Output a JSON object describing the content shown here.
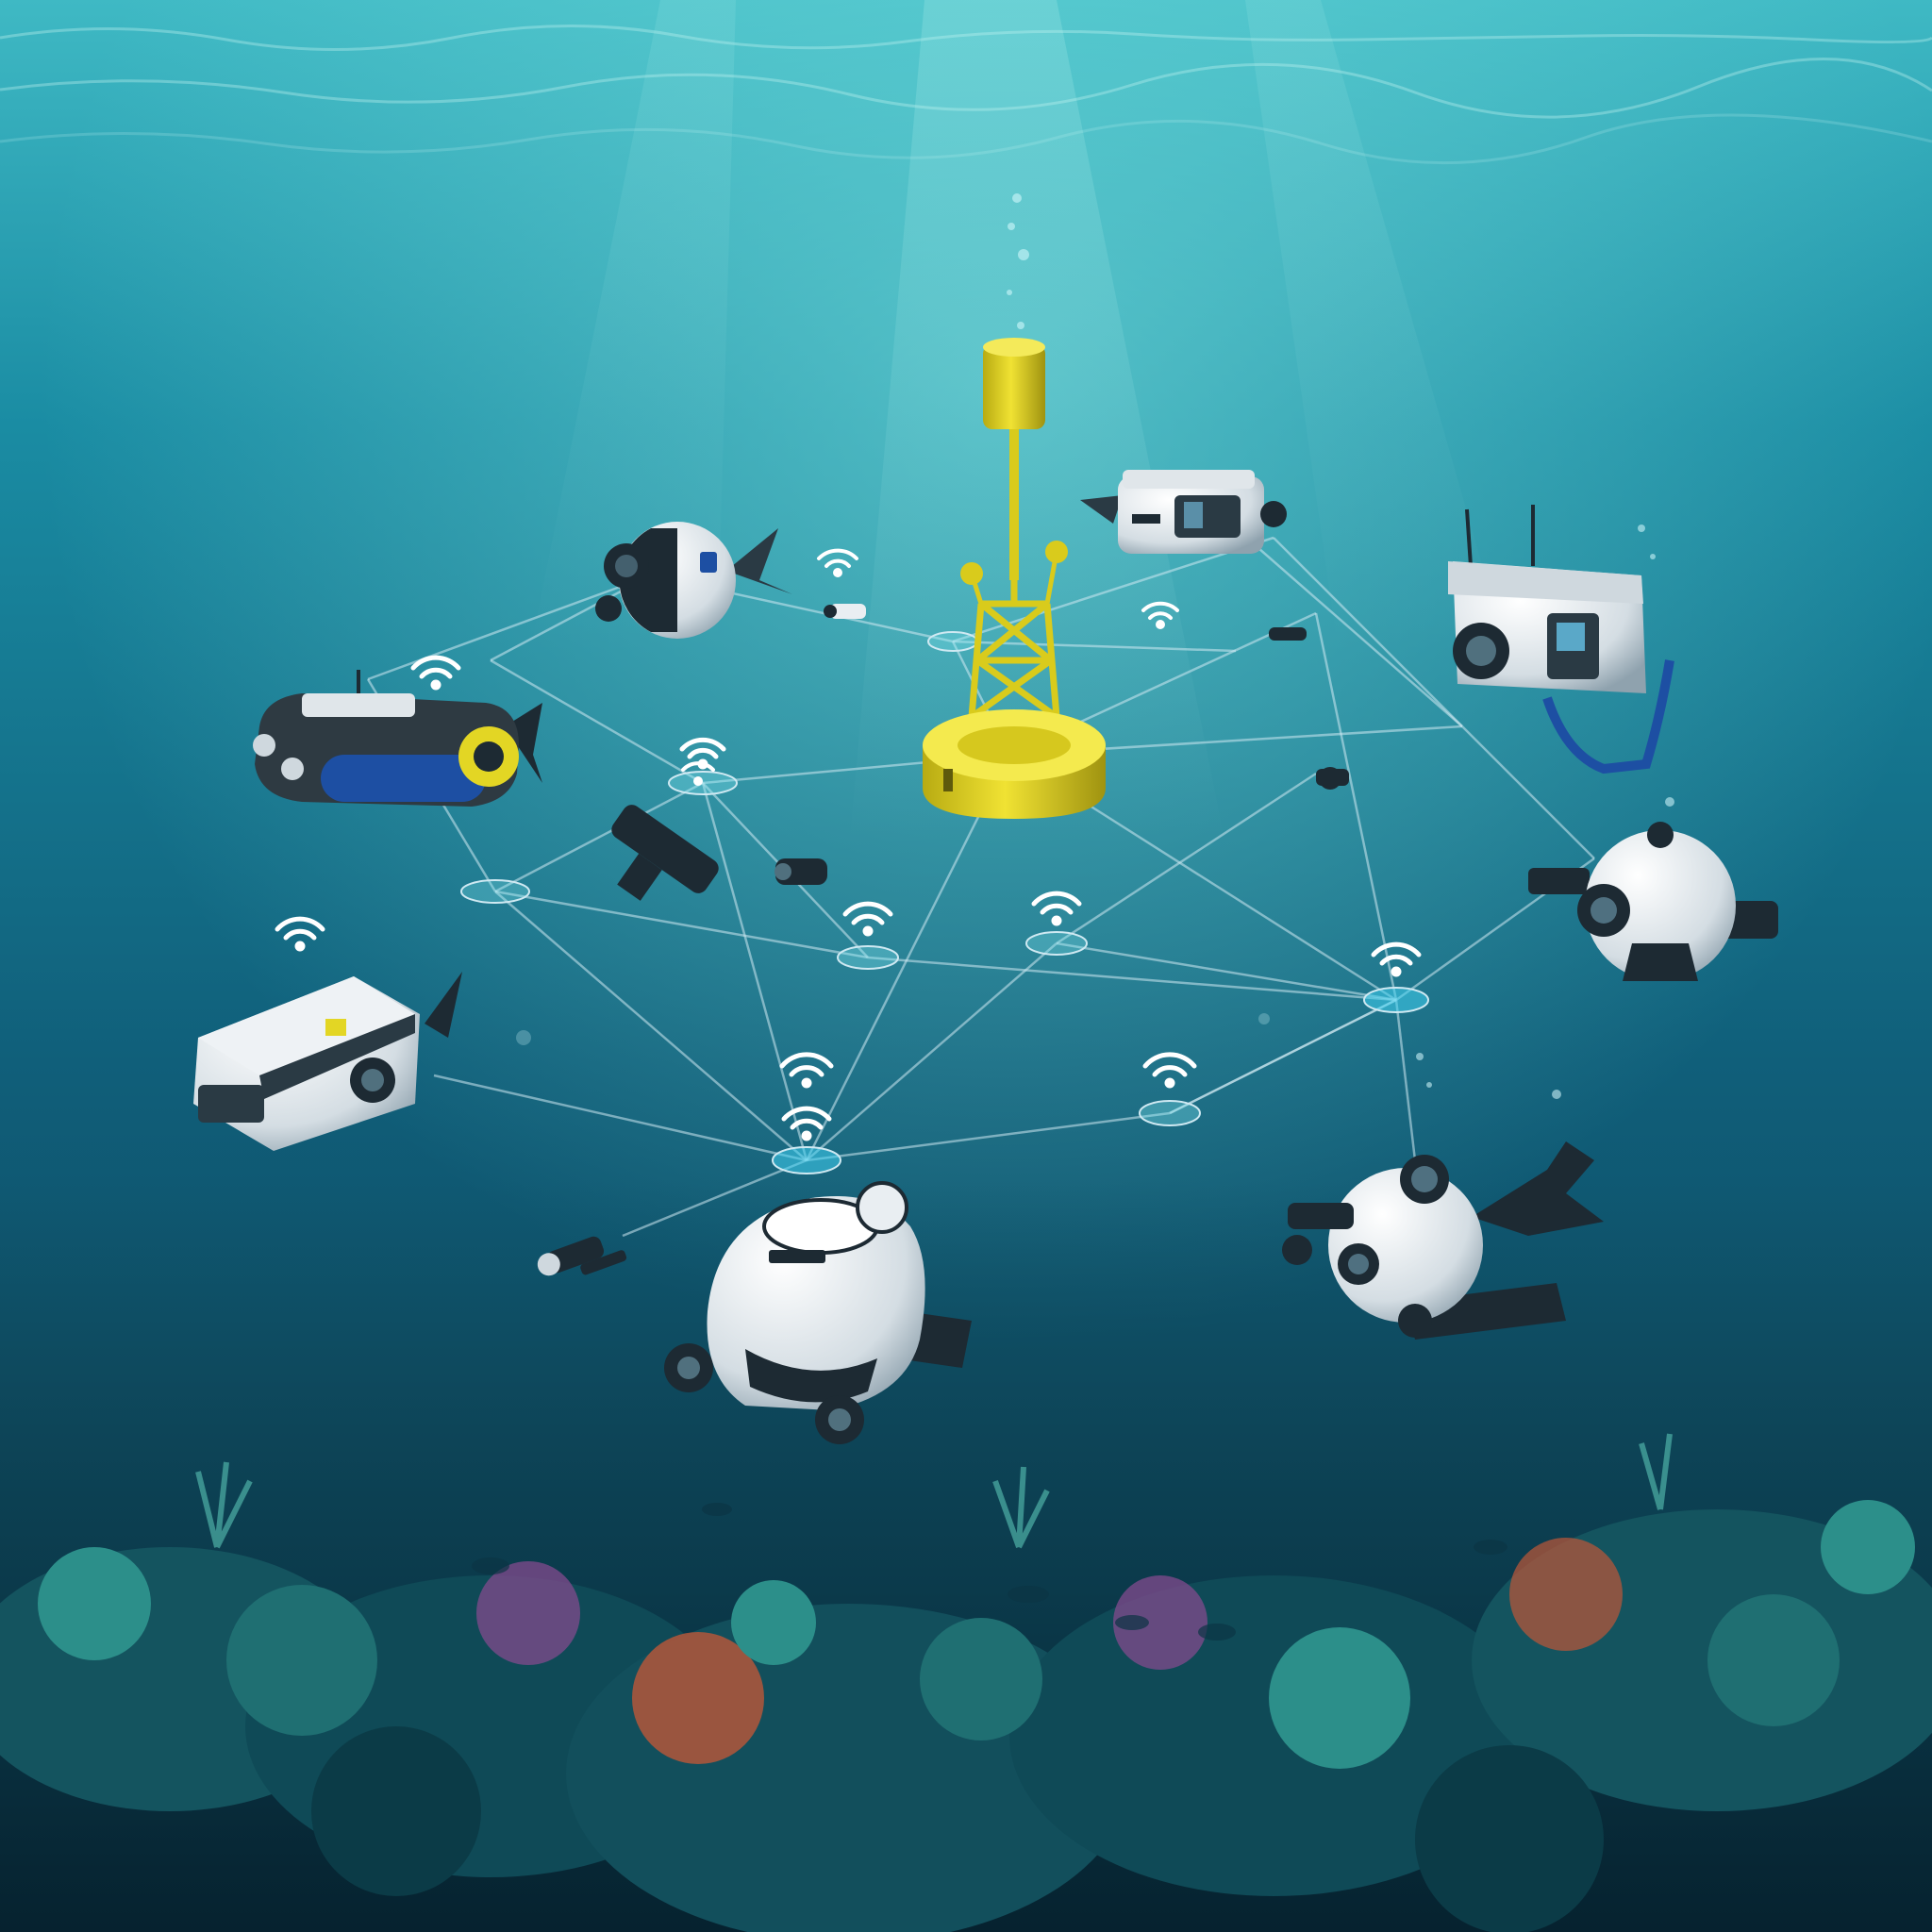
{
  "scene": {
    "subject": "underwater-sensor-network",
    "colors": {
      "surface": "#5fd0d6",
      "mid_water": "#13738c",
      "deep_water": "#0a3448",
      "buoy_yellow": "#e3d624",
      "buoy_dark": "#a89b10",
      "link_line": "#cfe9f2",
      "robot_white": "#e9eef2",
      "robot_dark": "#1d2a33",
      "accent_blue": "#1d4fa3",
      "coral_teal": "#2c8f8a",
      "coral_orange": "#b3563a",
      "coral_purple": "#7a4a8a"
    },
    "elements": [
      {
        "name": "central-buoy",
        "icon": "buoy-icon"
      },
      {
        "name": "auv-top-left-sphere",
        "icon": "spherical-drone-icon"
      },
      {
        "name": "auv-top-right-box",
        "icon": "camera-rov-icon"
      },
      {
        "name": "auv-far-right-box",
        "icon": "camera-rov-icon"
      },
      {
        "name": "auv-left-torpedo",
        "icon": "torpedo-auv-icon"
      },
      {
        "name": "auv-right-sphere",
        "icon": "spherical-drone-icon"
      },
      {
        "name": "auv-left-box",
        "icon": "box-rov-icon"
      },
      {
        "name": "auv-bottom-center",
        "icon": "crawler-rov-icon"
      },
      {
        "name": "auv-bottom-right-sphere",
        "icon": "spherical-drone-icon"
      }
    ]
  }
}
